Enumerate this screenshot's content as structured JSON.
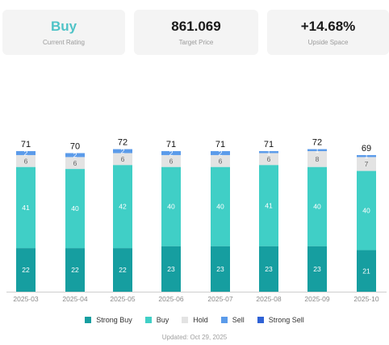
{
  "summary": {
    "rating": {
      "value": "Buy",
      "label": "Current Rating"
    },
    "target": {
      "value": "861.069",
      "label": "Target Price"
    },
    "upside": {
      "value": "+14.68%",
      "label": "Upside Space"
    }
  },
  "chart_data": {
    "type": "bar",
    "stacked": true,
    "categories": [
      "2025-03",
      "2025-04",
      "2025-05",
      "2025-06",
      "2025-07",
      "2025-08",
      "2025-09",
      "2025-10"
    ],
    "series": [
      {
        "name": "Strong Buy",
        "color": "#169ea0",
        "values": [
          22,
          22,
          22,
          23,
          23,
          23,
          23,
          21
        ]
      },
      {
        "name": "Buy",
        "color": "#40cfc6",
        "values": [
          41,
          40,
          42,
          40,
          40,
          41,
          40,
          40
        ]
      },
      {
        "name": "Hold",
        "color": "#e3e3e3",
        "values": [
          6,
          6,
          6,
          6,
          6,
          6,
          8,
          7
        ]
      },
      {
        "name": "Sell",
        "color": "#5b9bea",
        "values": [
          2,
          2,
          2,
          2,
          2,
          1,
          1,
          1
        ]
      },
      {
        "name": "Strong Sell",
        "color": "#2f62d6",
        "values": [
          0,
          0,
          0,
          0,
          0,
          0,
          0,
          0
        ]
      }
    ],
    "totals": [
      71,
      70,
      72,
      71,
      71,
      71,
      72,
      69
    ],
    "ylim": [
      0,
      80
    ],
    "legend_position": "bottom",
    "grid": false
  },
  "footer": {
    "updated": "Updated: Oct 29, 2025"
  }
}
